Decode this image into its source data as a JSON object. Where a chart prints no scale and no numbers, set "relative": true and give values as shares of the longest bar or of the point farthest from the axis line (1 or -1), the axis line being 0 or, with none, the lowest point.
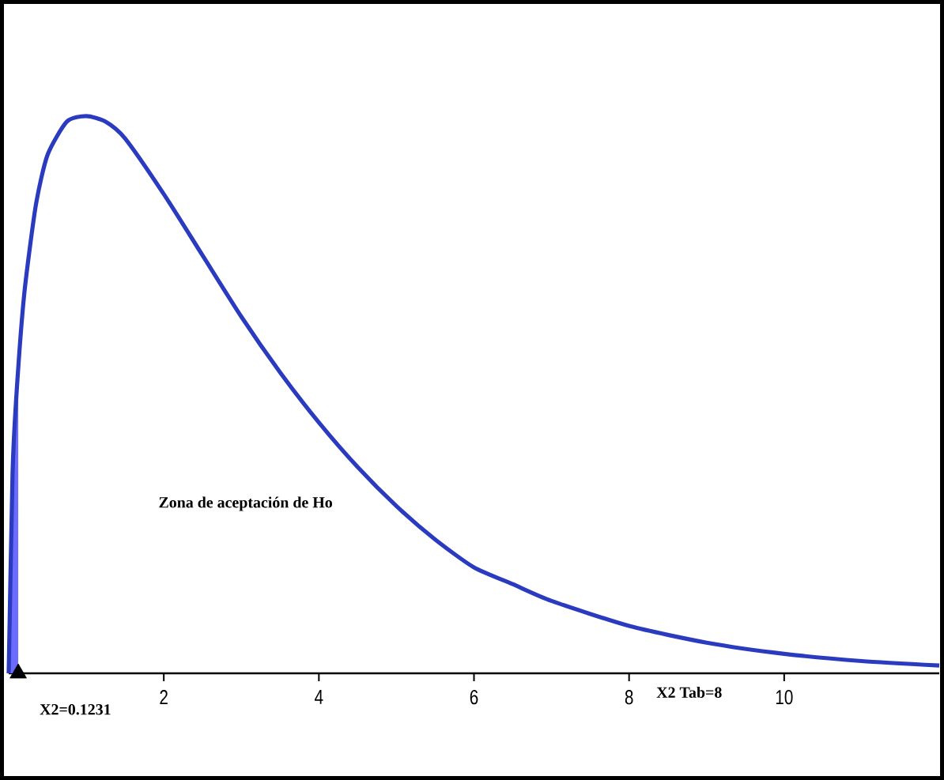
{
  "chart_data": {
    "type": "line",
    "relative": true,
    "x": [
      0,
      0.05,
      0.1,
      0.2,
      0.35,
      0.5,
      0.75,
      1,
      1.25,
      1.5,
      2,
      2.5,
      3,
      3.5,
      4,
      4.5,
      5,
      5.5,
      6,
      6.5,
      7,
      8,
      9,
      10,
      11,
      12
    ],
    "series": [
      {
        "type": "area",
        "color": "#6b6bff",
        "x": [
          0,
          0.05,
          0.1,
          0.1231
        ],
        "values": [
          0,
          0.36,
          0.5,
          0.54
        ]
      },
      {
        "color": "#2b3bbf",
        "values": [
          0,
          0.36,
          0.5,
          0.68,
          0.84,
          0.93,
          0.99,
          1.0,
          0.99,
          0.96,
          0.86,
          0.75,
          0.64,
          0.54,
          0.45,
          0.37,
          0.3,
          0.24,
          0.19,
          0.16,
          0.13,
          0.085,
          0.055,
          0.035,
          0.022,
          0.014
        ]
      },
      {
        "type": "scatter",
        "color": "#000000",
        "marker": "triangle",
        "x": [
          0.1231
        ],
        "values": [
          0
        ]
      }
    ],
    "xlim": [
      0,
      12
    ],
    "xticks": [
      2,
      4,
      6,
      8,
      10
    ],
    "annotations": [
      {
        "text": "X2=0.1231",
        "x": 0.1231,
        "y": 0
      },
      "X2 Tab=8",
      "Zona de aceptación de Ho"
    ],
    "marker": "none",
    "line_style": "solid",
    "grid": false,
    "legend": false
  }
}
